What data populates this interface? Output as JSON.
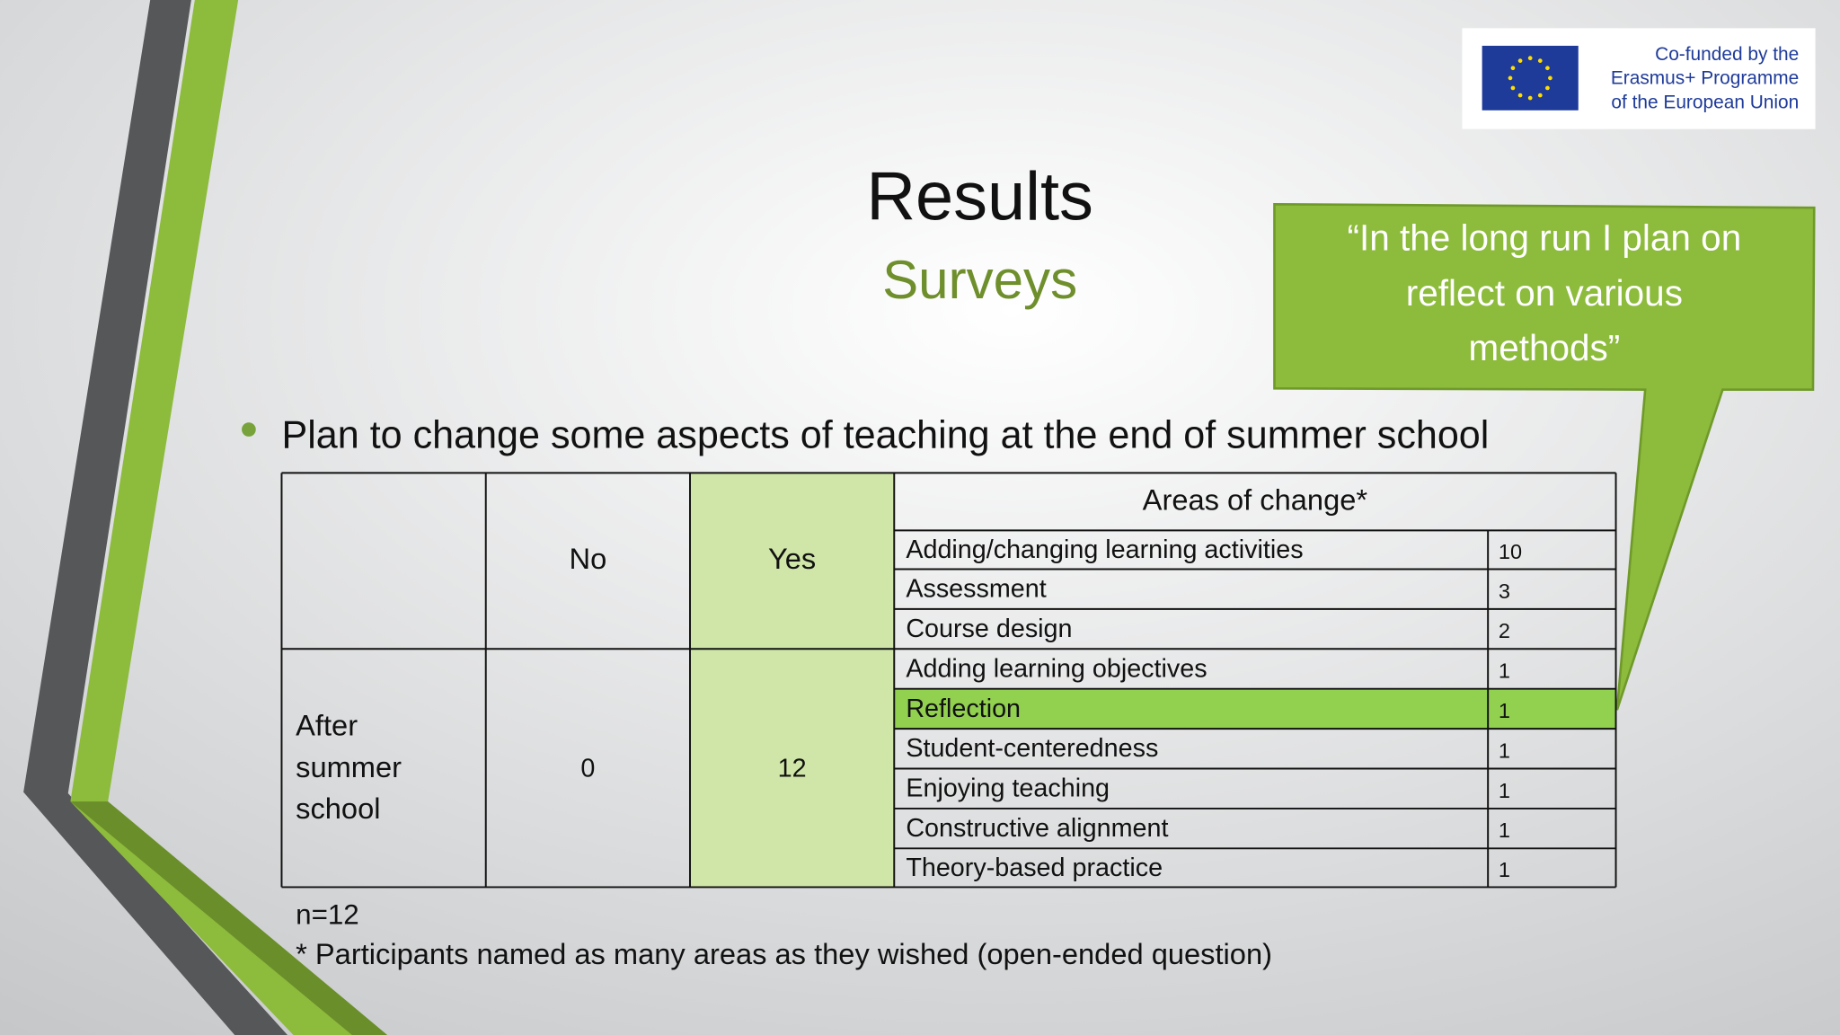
{
  "logo": {
    "lines": [
      "Co-funded by the",
      "Erasmus+ Programme",
      "of the European Union"
    ]
  },
  "header": {
    "title": "Results",
    "subtitle": "Surveys"
  },
  "callout": {
    "lines": [
      "“In the long run I plan on",
      "reflect on various",
      "methods”"
    ]
  },
  "bullet": "Plan to change some aspects of teaching at the end of summer school",
  "table": {
    "headers": [
      "No",
      "Yes",
      "Areas of change*"
    ],
    "row_label_lines": [
      "After",
      "summer",
      "school"
    ],
    "no": 0,
    "yes": 12,
    "areas": [
      [
        "Adding/changing learning activities",
        10
      ],
      [
        "Assessment",
        3
      ],
      [
        "Course design",
        2
      ],
      [
        "Adding learning objectives",
        1
      ],
      [
        "Reflection",
        1
      ],
      [
        "Student-centeredness",
        1
      ],
      [
        "Enjoying teaching",
        1
      ],
      [
        "Constructive alignment",
        1
      ],
      [
        "Theory-based practice",
        1
      ]
    ]
  },
  "notes": [
    "n=12",
    "* Participants named as many areas as they wished (open-ended question)"
  ]
}
